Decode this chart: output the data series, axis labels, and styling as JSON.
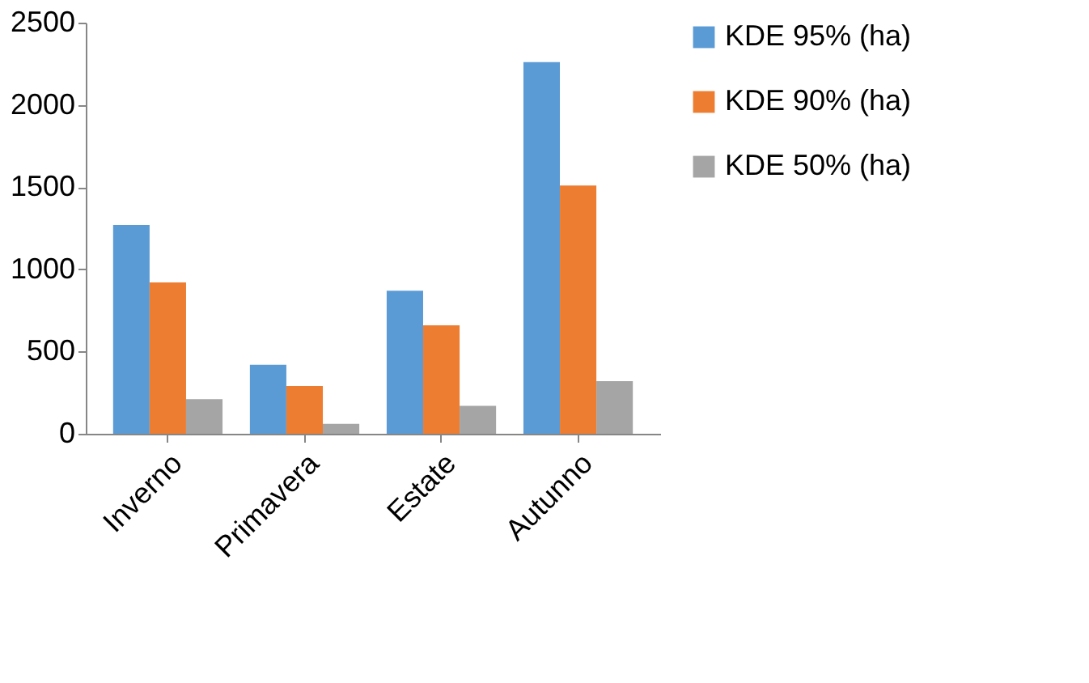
{
  "chart_data": {
    "type": "bar",
    "categories": [
      "Inverno",
      "Primavera",
      "Estate",
      "Autunno"
    ],
    "series": [
      {
        "name": "KDE 95% (ha)",
        "color": "#5b9bd5",
        "values": [
          1270,
          420,
          870,
          2260
        ]
      },
      {
        "name": "KDE 90% (ha)",
        "color": "#ed7d31",
        "values": [
          920,
          290,
          660,
          1510
        ]
      },
      {
        "name": "KDE 50% (ha)",
        "color": "#a5a5a5",
        "values": [
          210,
          60,
          170,
          320
        ]
      }
    ],
    "ylim": [
      0,
      2500
    ],
    "yticks": [
      0,
      500,
      1000,
      1500,
      2000,
      2500
    ],
    "grid": false,
    "legend": "right"
  }
}
